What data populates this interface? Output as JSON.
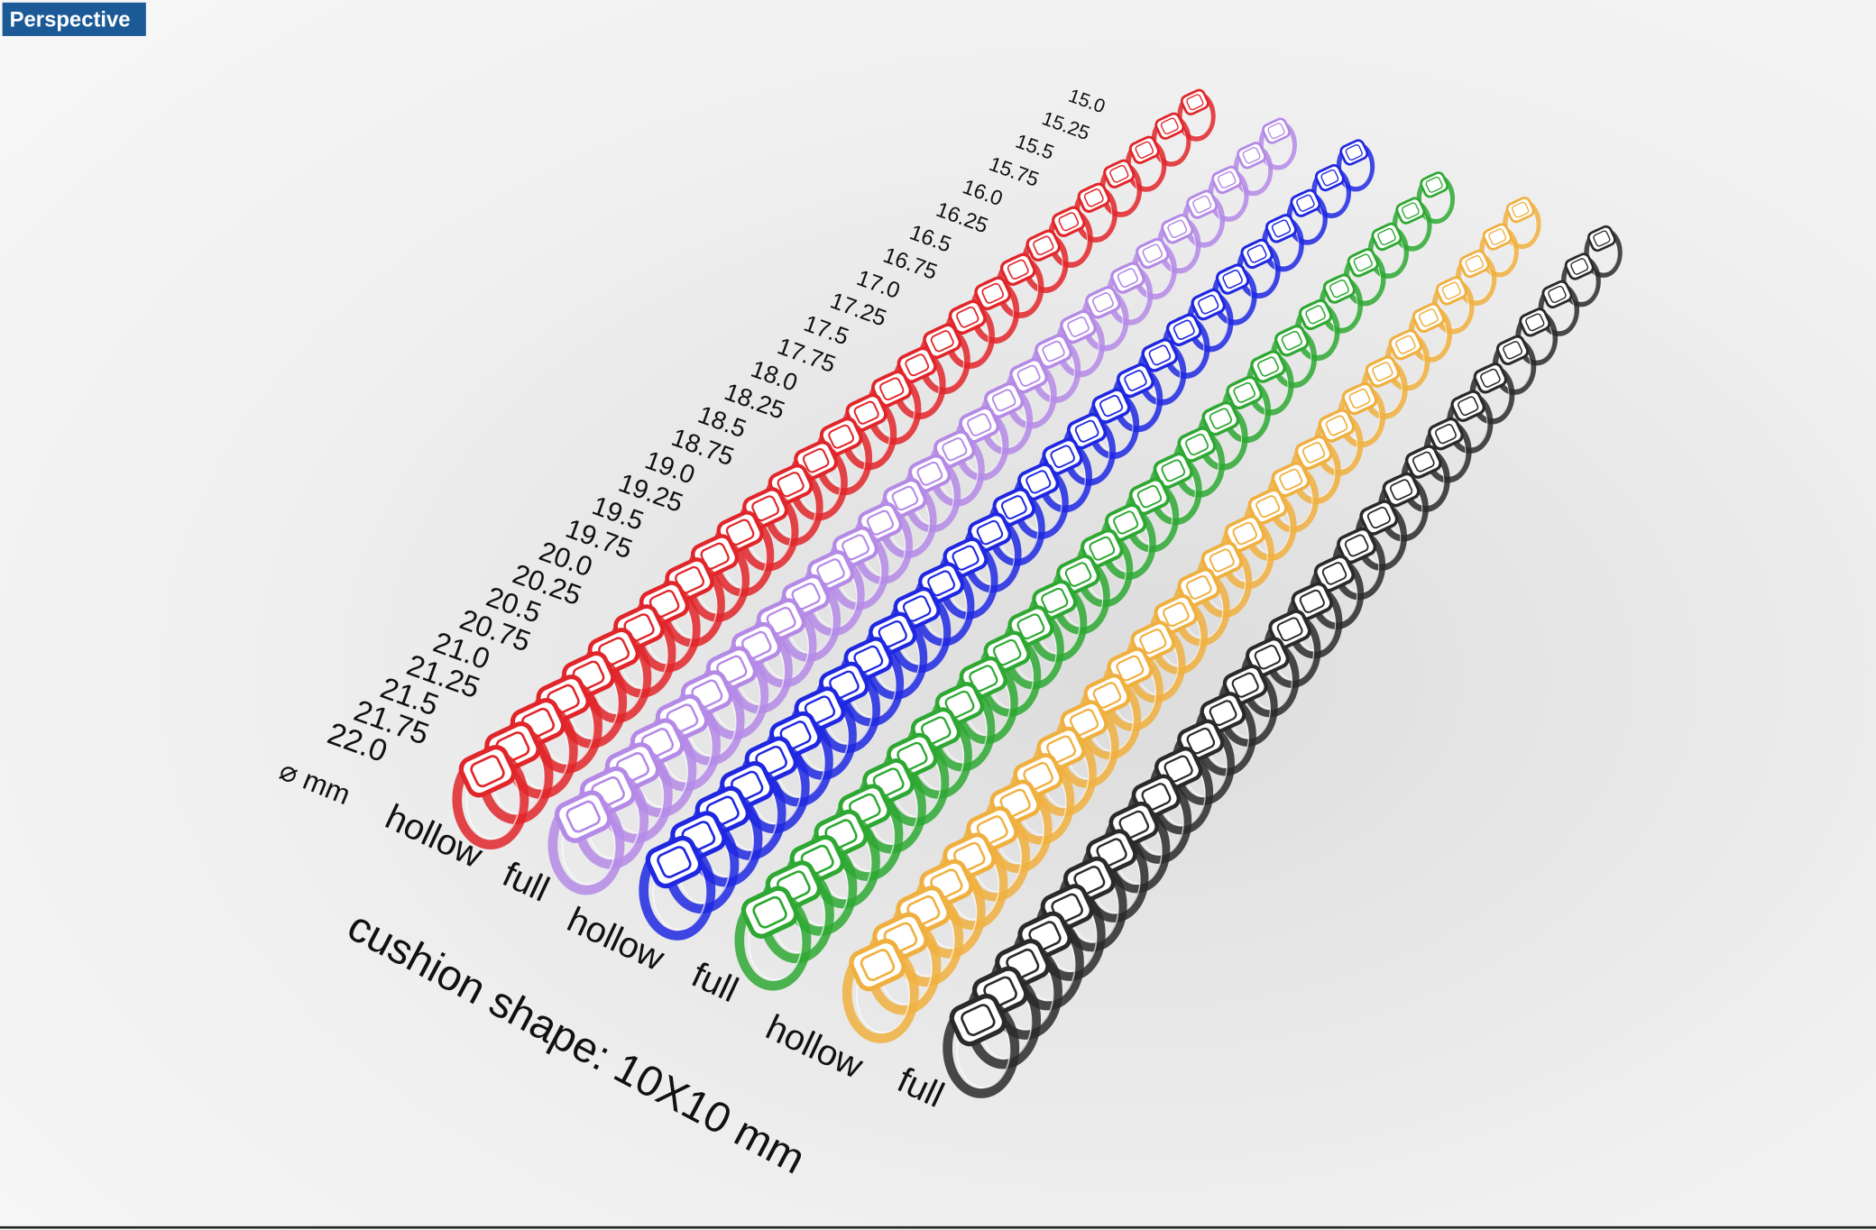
{
  "viewport": {
    "title": "Perspective"
  },
  "size_axis": {
    "unit": "⌀ mm",
    "sizes": [
      "15.0",
      "15.25",
      "15.5",
      "15.75",
      "16.0",
      "16.25",
      "16.5",
      "16.75",
      "17.0",
      "17.25",
      "17.5",
      "17.75",
      "18.0",
      "18.25",
      "18.5",
      "18.75",
      "19.0",
      "19.25",
      "19.5",
      "19.75",
      "20.0",
      "20.25",
      "20.5",
      "20.75",
      "21.0",
      "21.25",
      "21.5",
      "21.75",
      "22.0"
    ]
  },
  "rows": [
    {
      "label": "hollow",
      "color": "#e0262a"
    },
    {
      "label": "full",
      "color": "#b48ae6"
    },
    {
      "label": "hollow",
      "color": "#1f28e0"
    },
    {
      "label": "full",
      "color": "#2ea832"
    },
    {
      "label": "hollow",
      "color": "#f0b040"
    },
    {
      "label": "full",
      "color": "#2a2a2a"
    }
  ],
  "caption": "cushion shape: 10X10 mm"
}
